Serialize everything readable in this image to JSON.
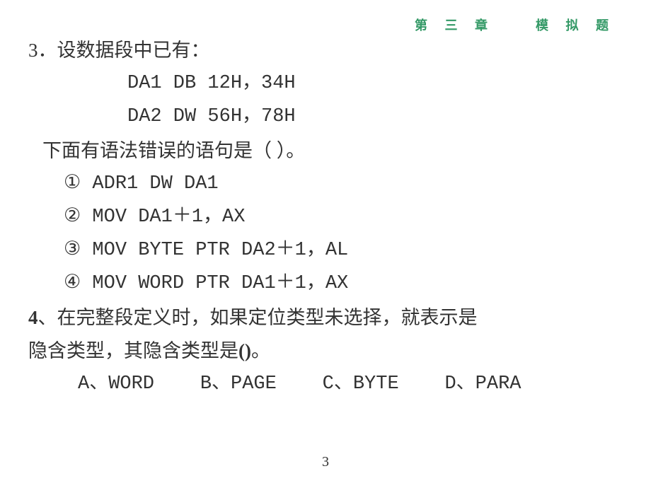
{
  "header": {
    "chapter": "第 三 章",
    "title": "模 拟 题"
  },
  "question3": {
    "intro": "3．设数据段中已有：",
    "code1": "DA1 DB 12H，34H",
    "code2": "DA2 DW 56H，78H",
    "prompt": "下面有语法错误的语句是（ ）。",
    "option1": "① ADR1 DW DA1",
    "option2": "② MOV DA1＋1，AX",
    "option3": "③ MOV BYTE PTR DA2＋1，AL",
    "option4": "④ MOV WORD PTR DA1＋1，AX"
  },
  "question4": {
    "line1_bold": "4",
    "line1_rest": "、在完整段定义时，如果定位类型未选择，就表示是",
    "line2_a": "隐含类型，其隐含类型是",
    "line2_bold": "()",
    "line2_b": "。",
    "options": "A、WORD    B、PAGE    C、BYTE    D、PARA"
  },
  "pageNumber": "3",
  "colors": {
    "headerColor": "#339966",
    "textColor": "#333333",
    "background": "#ffffff"
  }
}
